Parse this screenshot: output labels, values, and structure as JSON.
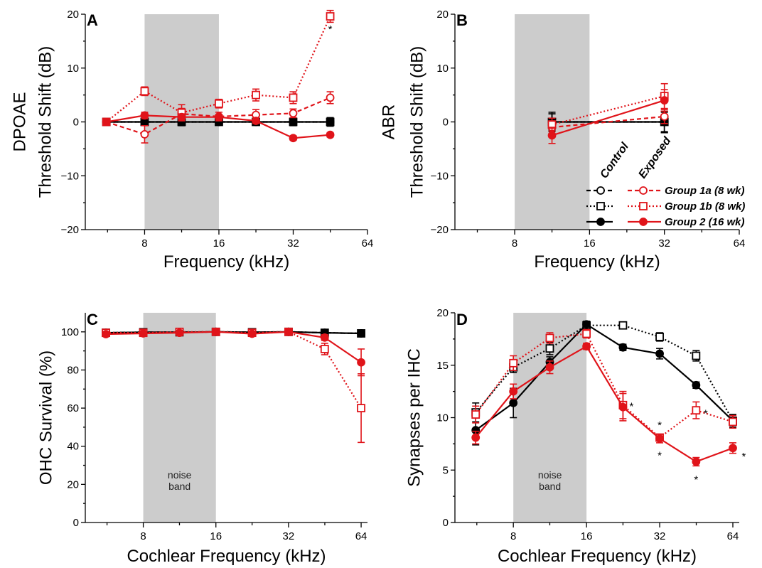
{
  "colors": {
    "control": "#000000",
    "exposed": "#e0141a",
    "noise_band": "#cccccc"
  },
  "legend": {
    "control_header": "Control",
    "exposed_header": "Exposed",
    "entries": [
      {
        "label": "Group 1a (8 wk)",
        "marker": "open-circle",
        "line": "dashed"
      },
      {
        "label": "Group 1b (8 wk)",
        "marker": "open-square",
        "line": "dotted"
      },
      {
        "label": "Group 2 (16 wk)",
        "marker": "filled-circle",
        "line": "solid"
      }
    ]
  },
  "chart_data": [
    {
      "id": "A",
      "panel_label": "A",
      "type": "line",
      "ylabel_lines": [
        "DPOAE",
        "Threshold Shift (dB)"
      ],
      "xlabel": "Frequency (kHz)",
      "xlim": [
        4.6,
        64
      ],
      "ylim": [
        -20,
        20
      ],
      "x_ticks": [
        8,
        16,
        32,
        64
      ],
      "y_ticks": [
        -20,
        -10,
        0,
        10,
        20
      ],
      "y_tick_labels": [
        "−20",
        "−10",
        "0",
        "10",
        "20"
      ],
      "noise_band": [
        8,
        16
      ],
      "series": [
        {
          "group": "1a",
          "condition": "control",
          "x": [
            5.6,
            8,
            11.3,
            16,
            22.6,
            32,
            45.2
          ],
          "y": [
            0,
            0,
            0,
            0,
            0,
            0,
            0
          ],
          "err": [
            0.4,
            0.5,
            0.6,
            0.5,
            0.6,
            0.5,
            0.6
          ]
        },
        {
          "group": "1b",
          "condition": "control",
          "x": [
            5.6,
            8,
            11.3,
            16,
            22.6,
            32,
            45.2
          ],
          "y": [
            0,
            0,
            0,
            0,
            0,
            0,
            0
          ],
          "err": [
            0.4,
            0.6,
            0.7,
            0.5,
            0.6,
            0.7,
            0.8
          ]
        },
        {
          "group": "2",
          "condition": "control",
          "x": [
            5.6,
            8,
            11.3,
            16,
            22.6,
            32,
            45.2
          ],
          "y": [
            0,
            0,
            0,
            0,
            0,
            0,
            0
          ],
          "err": [
            0.3,
            0.4,
            0.5,
            0.4,
            0.5,
            0.5,
            0.5
          ]
        },
        {
          "group": "1a",
          "condition": "exposed",
          "x": [
            5.6,
            8,
            11.3,
            16,
            22.6,
            32,
            45.2
          ],
          "y": [
            0,
            -2.3,
            1.5,
            1.0,
            1.3,
            1.6,
            4.5
          ],
          "err": [
            0.5,
            1.6,
            1.0,
            0.8,
            1.0,
            0.8,
            1.1
          ]
        },
        {
          "group": "1b",
          "condition": "exposed",
          "x": [
            5.6,
            8,
            11.3,
            16,
            22.6,
            32,
            45.2
          ],
          "y": [
            0,
            5.7,
            1.7,
            3.4,
            5.0,
            4.5,
            19.6
          ],
          "err": [
            0.5,
            0.8,
            1.5,
            0.8,
            1.1,
            1.1,
            1.1
          ]
        },
        {
          "group": "2",
          "condition": "exposed",
          "x": [
            5.6,
            8,
            11.3,
            16,
            22.6,
            32,
            45.2
          ],
          "y": [
            0,
            1.2,
            0.9,
            0.9,
            0.2,
            -3.0,
            -2.4
          ],
          "err": [
            0.3,
            0.6,
            0.6,
            0.5,
            0.5,
            0.4,
            0.4
          ]
        }
      ],
      "significance_marks": [
        {
          "x": 45.2,
          "y": 17.2,
          "text": "*"
        }
      ]
    },
    {
      "id": "B",
      "panel_label": "B",
      "type": "line",
      "ylabel_lines": [
        "ABR",
        "Threshold Shift (dB)"
      ],
      "xlabel": "Frequency (kHz)",
      "xlim": [
        4.6,
        64
      ],
      "ylim": [
        -20,
        20
      ],
      "x_ticks": [
        8,
        16,
        32,
        64
      ],
      "y_ticks": [
        -20,
        -10,
        0,
        10,
        20
      ],
      "y_tick_labels": [
        "−20",
        "−10",
        "0",
        "10",
        "20"
      ],
      "noise_band": [
        8,
        16
      ],
      "series": [
        {
          "group": "1a",
          "condition": "control",
          "x": [
            11.3,
            32
          ],
          "y": [
            0,
            0
          ],
          "err": [
            1.5,
            2.0
          ]
        },
        {
          "group": "1b",
          "condition": "control",
          "x": [
            11.3,
            32
          ],
          "y": [
            0,
            0
          ],
          "err": [
            1.8,
            2.0
          ]
        },
        {
          "group": "2",
          "condition": "control",
          "x": [
            11.3,
            32
          ],
          "y": [
            0,
            0
          ],
          "err": [
            1.5,
            1.8
          ]
        },
        {
          "group": "1a",
          "condition": "exposed",
          "x": [
            11.3,
            32
          ],
          "y": [
            -1.0,
            1.0
          ],
          "err": [
            1.2,
            1.3
          ]
        },
        {
          "group": "1b",
          "condition": "exposed",
          "x": [
            11.3,
            32
          ],
          "y": [
            -0.5,
            4.8
          ],
          "err": [
            1.2,
            2.3
          ]
        },
        {
          "group": "2",
          "condition": "exposed",
          "x": [
            11.3,
            32
          ],
          "y": [
            -2.5,
            4.0
          ],
          "err": [
            1.5,
            2.0
          ]
        }
      ],
      "significance_marks": []
    },
    {
      "id": "C",
      "panel_label": "C",
      "type": "line",
      "ylabel_lines": [
        "OHC Survival (%)"
      ],
      "xlabel": "Cochlear Frequency (kHz)",
      "xlim": [
        4.6,
        68
      ],
      "ylim": [
        0,
        110
      ],
      "x_ticks": [
        8,
        16,
        32,
        64
      ],
      "y_ticks": [
        0,
        20,
        40,
        60,
        80,
        100
      ],
      "y_tick_labels": [
        "0",
        "20",
        "40",
        "60",
        "80",
        "100"
      ],
      "noise_band": [
        8,
        16
      ],
      "noise_band_label": [
        "noise",
        "band"
      ],
      "series": [
        {
          "group": "1a",
          "condition": "control",
          "x": [
            5.6,
            8,
            11.3,
            16,
            22.6,
            32,
            45.2,
            64
          ],
          "y": [
            99.5,
            99.8,
            99.8,
            100,
            99.8,
            100,
            99.5,
            99.2
          ],
          "err": [
            0.3,
            0.3,
            0.3,
            0.2,
            0.3,
            0.2,
            0.4,
            0.5
          ]
        },
        {
          "group": "1b",
          "condition": "control",
          "x": [
            5.6,
            8,
            11.3,
            16,
            22.6,
            32,
            45.2,
            64
          ],
          "y": [
            99.5,
            99.8,
            99.8,
            100,
            99.8,
            100,
            99.5,
            99.2
          ],
          "err": [
            0.3,
            0.3,
            0.3,
            0.2,
            0.3,
            0.2,
            0.4,
            0.5
          ]
        },
        {
          "group": "2",
          "condition": "control",
          "x": [
            5.6,
            8,
            11.3,
            16,
            22.6,
            32,
            45.2,
            64
          ],
          "y": [
            99.5,
            99.8,
            99.8,
            100,
            99.8,
            100,
            99.5,
            99.2
          ],
          "err": [
            0.3,
            0.3,
            0.3,
            0.2,
            0.3,
            0.2,
            0.4,
            0.5
          ]
        },
        {
          "group": "1b",
          "condition": "exposed",
          "x": [
            5.6,
            8,
            11.3,
            16,
            22.6,
            32,
            45.2,
            64
          ],
          "y": [
            99.5,
            99.5,
            100,
            100,
            99.5,
            100,
            91,
            60
          ],
          "err": [
            0.5,
            0.5,
            0.4,
            0.3,
            0.5,
            0.3,
            3,
            18
          ]
        },
        {
          "group": "2",
          "condition": "exposed",
          "x": [
            5.6,
            8,
            11.3,
            16,
            22.6,
            32,
            45.2,
            64
          ],
          "y": [
            98.8,
            99.2,
            99.5,
            100,
            99,
            100,
            97,
            84
          ],
          "err": [
            0.5,
            0.5,
            0.4,
            0.3,
            0.5,
            0.3,
            1.5,
            7
          ]
        }
      ],
      "significance_marks": []
    },
    {
      "id": "D",
      "panel_label": "D",
      "type": "line",
      "ylabel_lines": [
        "Synapses per IHC"
      ],
      "xlabel": "Cochlear Frequency (kHz)",
      "xlim": [
        4.6,
        68
      ],
      "ylim": [
        0,
        20
      ],
      "x_ticks": [
        8,
        16,
        32,
        64
      ],
      "y_ticks": [
        0,
        5,
        10,
        15,
        20
      ],
      "y_tick_labels": [
        "0",
        "5",
        "10",
        "15",
        "20"
      ],
      "noise_band": [
        8,
        16
      ],
      "noise_band_label": [
        "noise",
        "band"
      ],
      "series": [
        {
          "group": "1b",
          "condition": "control",
          "x": [
            5.6,
            8,
            11.3,
            16,
            22.6,
            32,
            45.2,
            64
          ],
          "y": [
            10.5,
            14.8,
            16.6,
            18.8,
            18.8,
            17.7,
            15.9,
            9.7
          ],
          "err": [
            0.9,
            0.5,
            0.6,
            0.3,
            0.3,
            0.4,
            0.5,
            0.6
          ]
        },
        {
          "group": "2",
          "condition": "control",
          "x": [
            5.6,
            8,
            11.3,
            16,
            22.6,
            32,
            45.2,
            64
          ],
          "y": [
            8.8,
            11.4,
            15.3,
            18.9,
            16.7,
            16.1,
            13.1,
            9.7
          ],
          "err": [
            1.4,
            1.4,
            0.5,
            0.3,
            0.3,
            0.5,
            0.3,
            0.6
          ]
        },
        {
          "group": "1b",
          "condition": "exposed",
          "x": [
            5.6,
            8,
            11.3,
            16,
            22.6,
            32,
            45.2,
            64
          ],
          "y": [
            10.3,
            15.2,
            17.6,
            18.0,
            11.2,
            8.1,
            10.7,
            9.6
          ],
          "err": [
            0.8,
            0.7,
            0.5,
            0.4,
            1.3,
            0.3,
            0.8,
            0.6
          ]
        },
        {
          "group": "2",
          "condition": "exposed",
          "x": [
            5.6,
            8,
            11.3,
            16,
            22.6,
            32,
            45.2,
            64
          ],
          "y": [
            8.1,
            12.5,
            14.8,
            16.8,
            11.0,
            8.0,
            5.8,
            7.1
          ],
          "err": [
            0.6,
            0.7,
            0.6,
            0.3,
            1.3,
            0.4,
            0.4,
            0.5
          ]
        }
      ],
      "significance_marks": [
        {
          "x": 24.5,
          "y": 11.1,
          "text": "*"
        },
        {
          "x": 32,
          "y": 9.3,
          "text": "*"
        },
        {
          "x": 32,
          "y": 6.4,
          "text": "*"
        },
        {
          "x": 49.5,
          "y": 10.4,
          "text": "*"
        },
        {
          "x": 45.2,
          "y": 4.1,
          "text": "*"
        },
        {
          "x": 71,
          "y": 6.3,
          "text": "*"
        }
      ]
    }
  ]
}
